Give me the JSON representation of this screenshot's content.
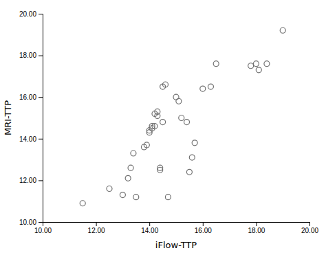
{
  "chart_data": {
    "type": "scatter",
    "x": [
      11.5,
      12.5,
      13.0,
      13.2,
      13.3,
      13.4,
      13.5,
      13.8,
      13.9,
      14.0,
      14.0,
      14.1,
      14.1,
      14.2,
      14.2,
      14.3,
      14.3,
      14.4,
      14.4,
      14.5,
      14.5,
      14.6,
      14.7,
      15.0,
      15.1,
      15.2,
      15.4,
      15.5,
      15.6,
      15.7,
      16.0,
      16.3,
      16.5,
      17.8,
      18.0,
      18.1,
      18.4,
      19.0
    ],
    "y": [
      10.9,
      11.6,
      11.3,
      12.1,
      12.6,
      13.3,
      11.2,
      13.6,
      13.7,
      14.3,
      14.4,
      14.5,
      14.6,
      14.6,
      15.2,
      15.3,
      15.1,
      12.5,
      12.6,
      14.8,
      16.5,
      16.6,
      11.2,
      16.0,
      15.8,
      15.0,
      14.8,
      12.4,
      13.1,
      13.8,
      16.4,
      16.5,
      17.6,
      17.5,
      17.6,
      17.3,
      17.6,
      19.2
    ],
    "xlim": [
      10.0,
      20.0
    ],
    "ylim": [
      10.0,
      20.0
    ],
    "xticks": [
      {
        "value": 10.0,
        "label": "10.00"
      },
      {
        "value": 12.0,
        "label": "12.00"
      },
      {
        "value": 14.0,
        "label": "14.00"
      },
      {
        "value": 16.0,
        "label": "16.00"
      },
      {
        "value": 18.0,
        "label": "18.00"
      },
      {
        "value": 20.0,
        "label": "20.00"
      }
    ],
    "yticks": [
      {
        "value": 10.0,
        "label": "10.00"
      },
      {
        "value": 12.0,
        "label": "12.00"
      },
      {
        "value": 14.0,
        "label": "14.00"
      },
      {
        "value": 16.0,
        "label": "16.00"
      },
      {
        "value": 18.0,
        "label": "18.00"
      },
      {
        "value": 20.0,
        "label": "20.00"
      }
    ],
    "xlabel": "iFlow-TTP",
    "ylabel": "MRI-TTP",
    "color": "#707070",
    "marker": "open-circle",
    "grid": false
  }
}
